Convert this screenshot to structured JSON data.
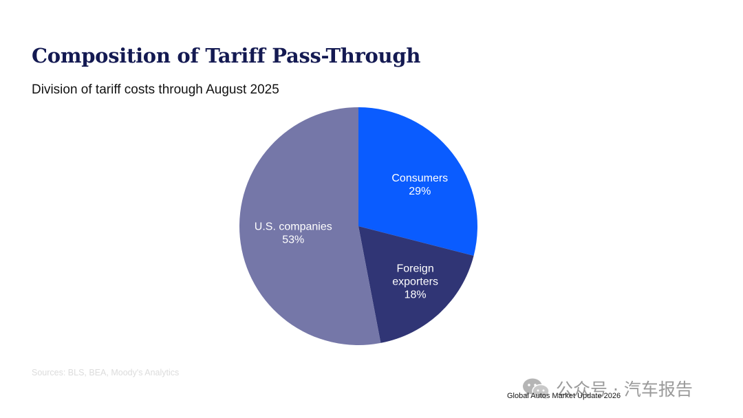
{
  "title": "Composition of Tariff Pass-Through",
  "subtitle": "Division of tariff costs through August 2025",
  "chart_data": {
    "type": "pie",
    "slices": [
      {
        "name": "Consumers",
        "label_lines": [
          "Consumers"
        ],
        "value": 29,
        "display": "29%",
        "color": "#0a5cff"
      },
      {
        "name": "Foreign exporters",
        "label_lines": [
          "Foreign",
          "exporters"
        ],
        "value": 18,
        "display": "18%",
        "color": "#303575"
      },
      {
        "name": "U.S. companies",
        "label_lines": [
          "U.S. companies"
        ],
        "value": 53,
        "display": "53%",
        "color": "#7577a8"
      }
    ],
    "start_angle_deg": 0,
    "direction": "clockwise",
    "legend": "none"
  },
  "source": "Sources: BLS, BEA, Moody's Analytics",
  "watermark": {
    "icon": "wechat-icon",
    "text": "公众号 · 汽车报告"
  },
  "footer": "Global Autos Market Update 2026"
}
